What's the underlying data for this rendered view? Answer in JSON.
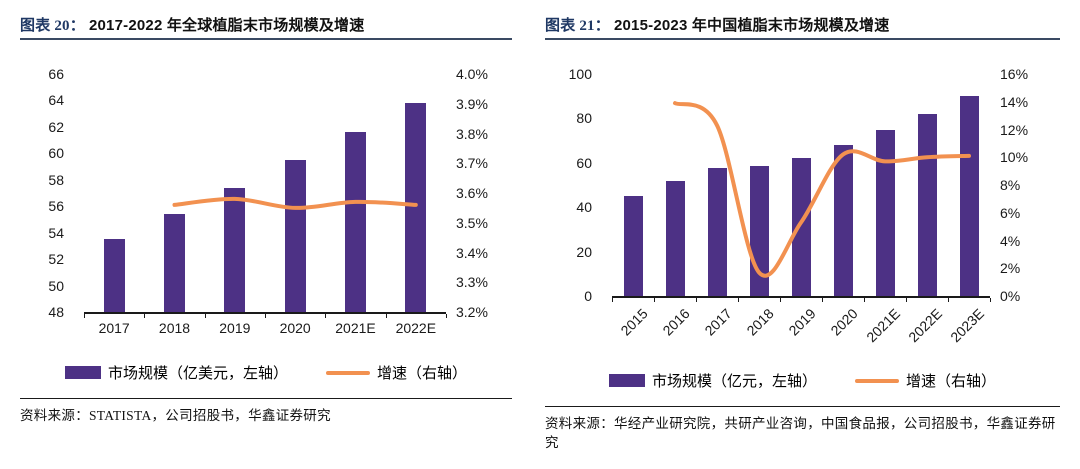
{
  "colors": {
    "bar_color": "#4D3185",
    "line_color": "#F29150",
    "figure_label_color": "#1F3864",
    "title_rule_color": "#3A4A63",
    "axis_color": "#1A1A1A"
  },
  "panels": [
    {
      "figure_label": "图表 20：",
      "title": "2017-2022 年全球植脂末市场规模及增速",
      "legend": {
        "bar_label": "市场规模（亿美元，左轴）",
        "line_label": "增速（右轴）"
      },
      "source": "资料来源：STATISTA，公司招股书，华鑫证券研究"
    },
    {
      "figure_label": "图表 21：",
      "title": "2015-2023 年中国植脂末市场规模及增速",
      "legend": {
        "bar_label": "市场规模（亿元，左轴）",
        "line_label": "增速（右轴）"
      },
      "source": "资料来源：华经产业研究院，共研产业咨询，中国食品报，公司招股书，华鑫证券研究"
    }
  ],
  "chart_data": [
    {
      "type": "bar",
      "title": "2017-2022 年全球植脂末市场规模及增速",
      "categories": [
        "2017",
        "2018",
        "2019",
        "2020",
        "2021E",
        "2022E"
      ],
      "series": [
        {
          "name": "市场规模（亿美元，左轴）",
          "type": "bar",
          "axis": "left",
          "values": [
            53.5,
            55.4,
            57.4,
            59.5,
            61.6,
            63.8
          ]
        },
        {
          "name": "增速（右轴）",
          "type": "line",
          "axis": "right",
          "values": [
            null,
            3.56,
            3.58,
            3.55,
            3.57,
            3.56
          ]
        }
      ],
      "left_axis": {
        "min": 48,
        "max": 66,
        "step": 2,
        "decimals": 0,
        "suffix": ""
      },
      "right_axis": {
        "min": 3.2,
        "max": 4.0,
        "step": 0.1,
        "decimals": 1,
        "suffix": "%"
      },
      "legend_position": "bottom",
      "grid": false,
      "x_label_rotation": 0
    },
    {
      "type": "bar",
      "title": "2015-2023 年中国植脂末市场规模及增速",
      "categories": [
        "2015",
        "2016",
        "2017",
        "2018",
        "2019",
        "2020",
        "2021E",
        "2022E",
        "2023E"
      ],
      "series": [
        {
          "name": "市场规模（亿元，左轴）",
          "type": "bar",
          "axis": "left",
          "values": [
            45,
            52,
            57.5,
            58.5,
            62,
            68,
            75,
            82,
            90
          ]
        },
        {
          "name": "增速（右轴）",
          "type": "line",
          "axis": "right",
          "values": [
            null,
            13.9,
            12.3,
            1.7,
            5.3,
            10.2,
            9.7,
            10.0,
            10.1
          ]
        }
      ],
      "left_axis": {
        "min": 0,
        "max": 100,
        "step": 20,
        "decimals": 0,
        "suffix": ""
      },
      "right_axis": {
        "min": 0,
        "max": 16,
        "step": 2,
        "decimals": 0,
        "suffix": "%"
      },
      "legend_position": "bottom",
      "grid": false,
      "x_label_rotation": -45
    }
  ]
}
